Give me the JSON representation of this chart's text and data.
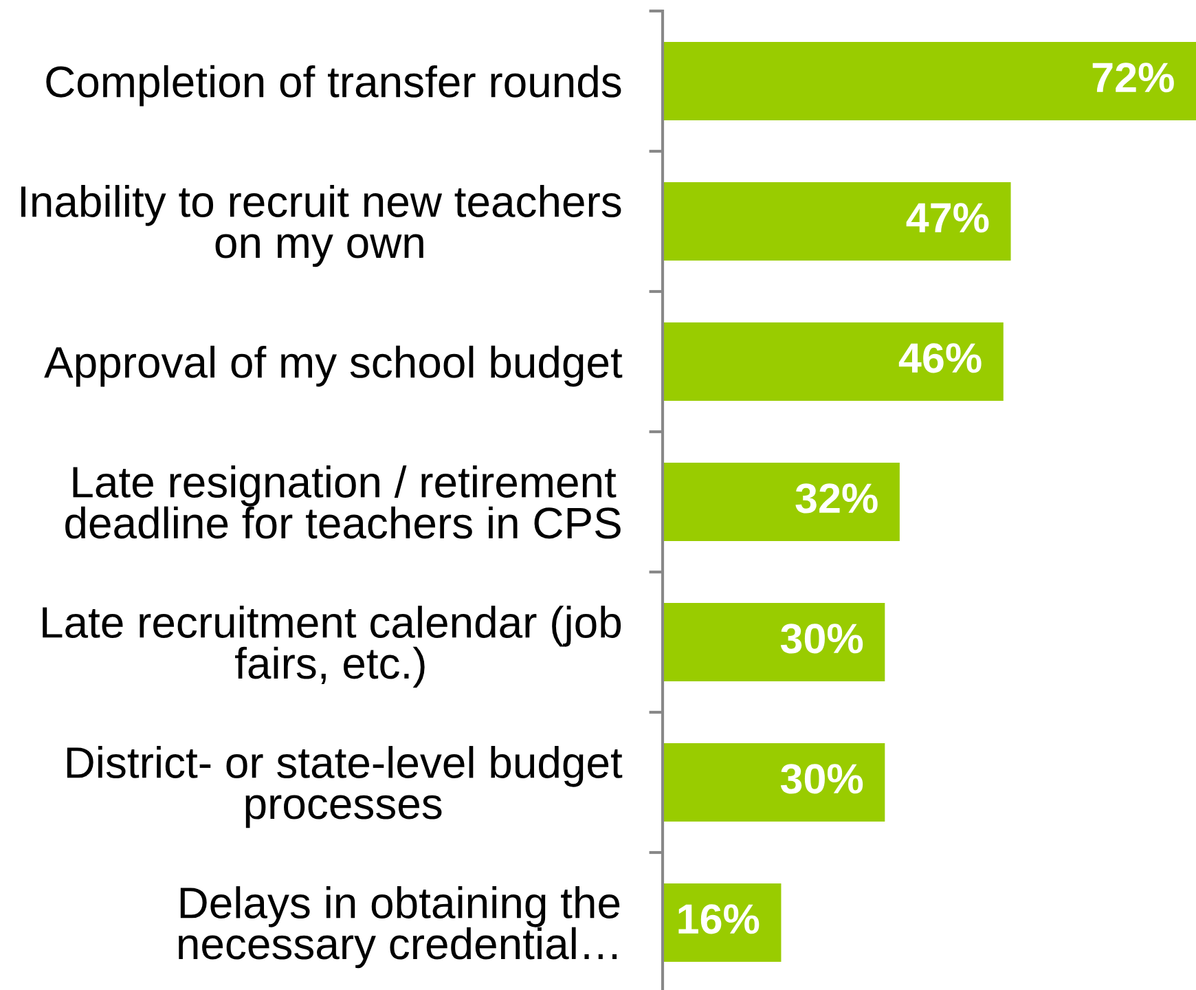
{
  "chart_data": {
    "type": "bar",
    "orientation": "horizontal",
    "categories": [
      "Completion of transfer rounds",
      "Inability to recruit new teachers\non my own",
      "Approval of my school budget",
      "Late resignation / retirement\ndeadline for teachers in CPS",
      "Late recruitment calendar (job\nfairs, etc.)",
      "District- or state-level budget\nprocesses",
      "Delays in obtaining the\nnecessary credential…"
    ],
    "values": [
      72,
      47,
      46,
      32,
      30,
      30,
      16
    ],
    "value_labels": [
      "72%",
      "47%",
      "46%",
      "32%",
      "30%",
      "30%",
      "16%"
    ],
    "color": "#99cc00",
    "xlim": [
      0,
      72
    ],
    "tick_labels": "y"
  }
}
